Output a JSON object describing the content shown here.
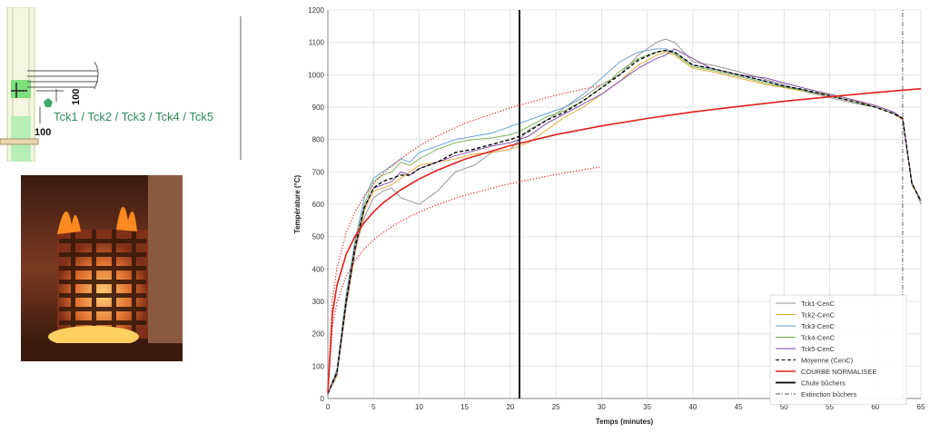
{
  "schematic": {
    "sensor_label": "Tck1 / Tck2 / Tck3 / Tck4 / Tck5",
    "dim_vertical": "100",
    "dim_horizontal": "100"
  },
  "chart_data": {
    "type": "line",
    "xlabel": "Temps (minutes)",
    "ylabel": "Température (°C)",
    "xlim": [
      0,
      65
    ],
    "ylim": [
      0,
      1200
    ],
    "xticks": [
      0,
      5,
      10,
      15,
      20,
      25,
      30,
      35,
      40,
      45,
      50,
      55,
      60,
      65
    ],
    "yticks": [
      0,
      100,
      200,
      300,
      400,
      500,
      600,
      700,
      800,
      900,
      1000,
      1100,
      1200
    ],
    "grid": true,
    "legend_position": "bottom-right",
    "series": [
      {
        "name": "Tck1-CenC",
        "color": "#8c8c8c",
        "style": "solid",
        "x": [
          0,
          1,
          2,
          3,
          4,
          5,
          6,
          7,
          8,
          9,
          10,
          12,
          14,
          16,
          18,
          20,
          21,
          22,
          24,
          26,
          28,
          30,
          32,
          34,
          36,
          37,
          38,
          40,
          42,
          45,
          48,
          50,
          52,
          55,
          58,
          60,
          62,
          63,
          64,
          65
        ],
        "y": [
          15,
          80,
          300,
          460,
          560,
          620,
          640,
          650,
          620,
          610,
          600,
          640,
          700,
          720,
          760,
          770,
          800,
          830,
          860,
          900,
          930,
          970,
          1000,
          1060,
          1100,
          1110,
          1100,
          1040,
          1030,
          1010,
          985,
          970,
          950,
          930,
          910,
          900,
          880,
          860,
          670,
          600
        ]
      },
      {
        "name": "Tck2-CenC",
        "color": "#e3a72f",
        "style": "solid",
        "x": [
          0,
          1,
          2,
          3,
          4,
          5,
          6,
          7,
          8,
          9,
          10,
          12,
          14,
          16,
          18,
          20,
          21,
          22,
          24,
          26,
          28,
          30,
          32,
          34,
          36,
          37,
          38,
          40,
          42,
          45,
          48,
          50,
          52,
          55,
          58,
          60,
          62,
          63,
          64,
          65
        ],
        "y": [
          15,
          70,
          280,
          450,
          580,
          640,
          650,
          660,
          680,
          700,
          720,
          730,
          740,
          755,
          760,
          770,
          780,
          790,
          830,
          870,
          900,
          940,
          980,
          1030,
          1060,
          1070,
          1060,
          1020,
          1010,
          990,
          970,
          960,
          950,
          940,
          920,
          900,
          880,
          860,
          660,
          610
        ]
      },
      {
        "name": "Tck3-CenC",
        "color": "#5b9bd5",
        "style": "solid",
        "x": [
          0,
          1,
          2,
          3,
          4,
          5,
          6,
          7,
          8,
          9,
          10,
          12,
          14,
          16,
          18,
          20,
          21,
          22,
          24,
          26,
          28,
          30,
          32,
          34,
          36,
          37,
          38,
          40,
          42,
          45,
          48,
          50,
          52,
          55,
          58,
          60,
          62,
          63,
          64,
          65
        ],
        "y": [
          15,
          90,
          320,
          490,
          620,
          680,
          700,
          720,
          740,
          730,
          760,
          780,
          800,
          810,
          820,
          840,
          850,
          860,
          880,
          900,
          940,
          990,
          1040,
          1070,
          1080,
          1080,
          1070,
          1030,
          1020,
          1000,
          980,
          965,
          955,
          935,
          915,
          900,
          880,
          865,
          665,
          610
        ]
      },
      {
        "name": "Tck4-CenC",
        "color": "#70ad47",
        "style": "solid",
        "x": [
          0,
          1,
          2,
          3,
          4,
          5,
          6,
          7,
          8,
          9,
          10,
          12,
          14,
          16,
          18,
          20,
          21,
          22,
          24,
          26,
          28,
          30,
          32,
          34,
          36,
          37,
          38,
          40,
          42,
          45,
          48,
          50,
          52,
          55,
          58,
          60,
          62,
          63,
          64,
          65
        ],
        "y": [
          15,
          85,
          310,
          480,
          600,
          670,
          690,
          700,
          730,
          720,
          740,
          770,
          790,
          800,
          805,
          815,
          825,
          840,
          870,
          890,
          920,
          960,
          1010,
          1050,
          1070,
          1075,
          1065,
          1025,
          1015,
          995,
          975,
          962,
          952,
          935,
          915,
          900,
          880,
          865,
          665,
          610
        ]
      },
      {
        "name": "Tck5-CenC",
        "color": "#7b3fa8",
        "style": "solid",
        "x": [
          0,
          1,
          2,
          3,
          4,
          5,
          6,
          7,
          8,
          9,
          10,
          12,
          14,
          16,
          18,
          20,
          21,
          22,
          24,
          26,
          28,
          30,
          32,
          34,
          36,
          37,
          38,
          40,
          42,
          45,
          48,
          50,
          52,
          55,
          58,
          60,
          62,
          63,
          64,
          65
        ],
        "y": [
          15,
          75,
          290,
          460,
          590,
          650,
          660,
          670,
          700,
          690,
          710,
          730,
          750,
          765,
          780,
          790,
          800,
          810,
          850,
          880,
          910,
          940,
          980,
          1020,
          1050,
          1060,
          1080,
          1050,
          1020,
          1000,
          990,
          975,
          960,
          940,
          920,
          905,
          885,
          865,
          665,
          610
        ]
      },
      {
        "name": "Moyenne (CenC)",
        "color": "#000000",
        "style": "dashed",
        "x": [
          0,
          1,
          2,
          3,
          4,
          5,
          6,
          7,
          8,
          9,
          10,
          12,
          14,
          16,
          18,
          20,
          21,
          22,
          24,
          26,
          28,
          30,
          32,
          34,
          36,
          37,
          38,
          40,
          42,
          45,
          48,
          50,
          52,
          55,
          58,
          60,
          62,
          63,
          64,
          65
        ],
        "y": [
          15,
          80,
          300,
          470,
          590,
          650,
          670,
          680,
          690,
          690,
          710,
          730,
          760,
          770,
          785,
          800,
          810,
          825,
          860,
          885,
          920,
          960,
          1000,
          1045,
          1070,
          1075,
          1070,
          1030,
          1020,
          1000,
          980,
          965,
          955,
          935,
          915,
          900,
          880,
          865,
          665,
          610
        ]
      },
      {
        "name": "COURBE NORMALISEE",
        "color": "#e0201a",
        "style": "solid",
        "x": [
          0,
          0.5,
          1,
          2,
          3,
          4,
          5,
          6,
          8,
          10,
          12,
          15,
          20,
          25,
          30,
          35,
          40,
          45,
          50,
          55,
          60,
          65
        ],
        "y": [
          20,
          261,
          349,
          445,
          502,
          544,
          576,
          603,
          645,
          678,
          705,
          739,
          781,
          815,
          842,
          865,
          885,
          902,
          918,
          932,
          945,
          957
        ]
      },
      {
        "name": "Chute bûchers",
        "color": "#000000",
        "style": "vline",
        "x": [
          21,
          21
        ],
        "y": [
          0,
          1200
        ]
      },
      {
        "name": "Extinction bûchers",
        "color": "#555555",
        "style": "dashdot",
        "x": [
          63,
          63
        ],
        "y": [
          0,
          1200
        ]
      },
      {
        "name": "",
        "color": "#e0201a",
        "style": "dotted",
        "x": [
          0,
          0.5,
          1,
          2,
          3,
          4,
          5,
          6,
          8,
          10,
          12,
          15,
          20,
          25,
          30
        ],
        "y": [
          26,
          304,
          402,
          512,
          577,
          626,
          662,
          694,
          741,
          780,
          811,
          850,
          898,
          937,
          968
        ]
      },
      {
        "name": "",
        "color": "#e0201a",
        "style": "dotted",
        "x": [
          0,
          0.5,
          1,
          2,
          3,
          4,
          5,
          6,
          8,
          10,
          12,
          15,
          20,
          25,
          30
        ],
        "y": [
          17,
          222,
          296,
          378,
          427,
          462,
          490,
          512,
          548,
          576,
          599,
          628,
          664,
          692,
          716
        ]
      }
    ]
  }
}
